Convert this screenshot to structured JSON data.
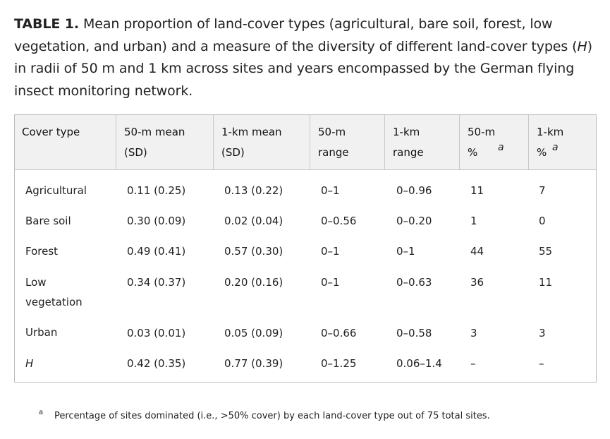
{
  "caption": {
    "label": "TABLE 1.",
    "text_part1": " Mean proportion of land-cover types (agricultural, bare soil, forest, low vegetation, and urban) and a measure of the diversity of different land-cover types (",
    "italic_H": "H",
    "text_part2": ") in radii of 50 m and 1 km across sites and years encompassed by the German flying insect monitoring network."
  },
  "table": {
    "headers": {
      "cover_type": "Cover type",
      "mean50_line1": "50-m mean",
      "mean50_line2": "(SD)",
      "mean1k_line1": "1-km mean",
      "mean1k_line2": "(SD)",
      "range50_line1": "50-m",
      "range50_line2": "range",
      "range1k_line1": "1-km",
      "range1k_line2": "range",
      "pct50_line1": "50-m",
      "pct50_line2": "%",
      "pct1k_line1": "1-km",
      "pct1k_line2": "%",
      "footnote_mark": "a"
    },
    "rows": [
      {
        "cover": "Agricultural",
        "mean50": "0.11 (0.25)",
        "mean1k": "0.13 (0.22)",
        "range50": "0–1",
        "range1k": "0–0.96",
        "pct50": "11",
        "pct1k": "7"
      },
      {
        "cover": "Bare soil",
        "mean50": "0.30 (0.09)",
        "mean1k": "0.02 (0.04)",
        "range50": "0–0.56",
        "range1k": "0–0.20",
        "pct50": "1",
        "pct1k": "0"
      },
      {
        "cover": "Forest",
        "mean50": "0.49 (0.41)",
        "mean1k": "0.57 (0.30)",
        "range50": "0–1",
        "range1k": "0–1",
        "pct50": "44",
        "pct1k": "55"
      },
      {
        "cover": "Low vegetation",
        "mean50": "0.34 (0.37)",
        "mean1k": "0.20 (0.16)",
        "range50": "0–1",
        "range1k": "0–0.63",
        "pct50": "36",
        "pct1k": "11"
      },
      {
        "cover": "Urban",
        "mean50": "0.03 (0.01)",
        "mean1k": "0.05 (0.09)",
        "range50": "0–0.66",
        "range1k": "0–0.58",
        "pct50": "3",
        "pct1k": "3"
      },
      {
        "cover": "H",
        "mean50": "0.42 (0.35)",
        "mean1k": "0.77 (0.39)",
        "range50": "0–1.25",
        "range1k": "0.06–1.4",
        "pct50": "–",
        "pct1k": "–"
      }
    ]
  },
  "footnote": {
    "mark": "a",
    "text": "Percentage of sites dominated (i.e., >50% cover) by each land-cover type out of 75 total sites."
  }
}
